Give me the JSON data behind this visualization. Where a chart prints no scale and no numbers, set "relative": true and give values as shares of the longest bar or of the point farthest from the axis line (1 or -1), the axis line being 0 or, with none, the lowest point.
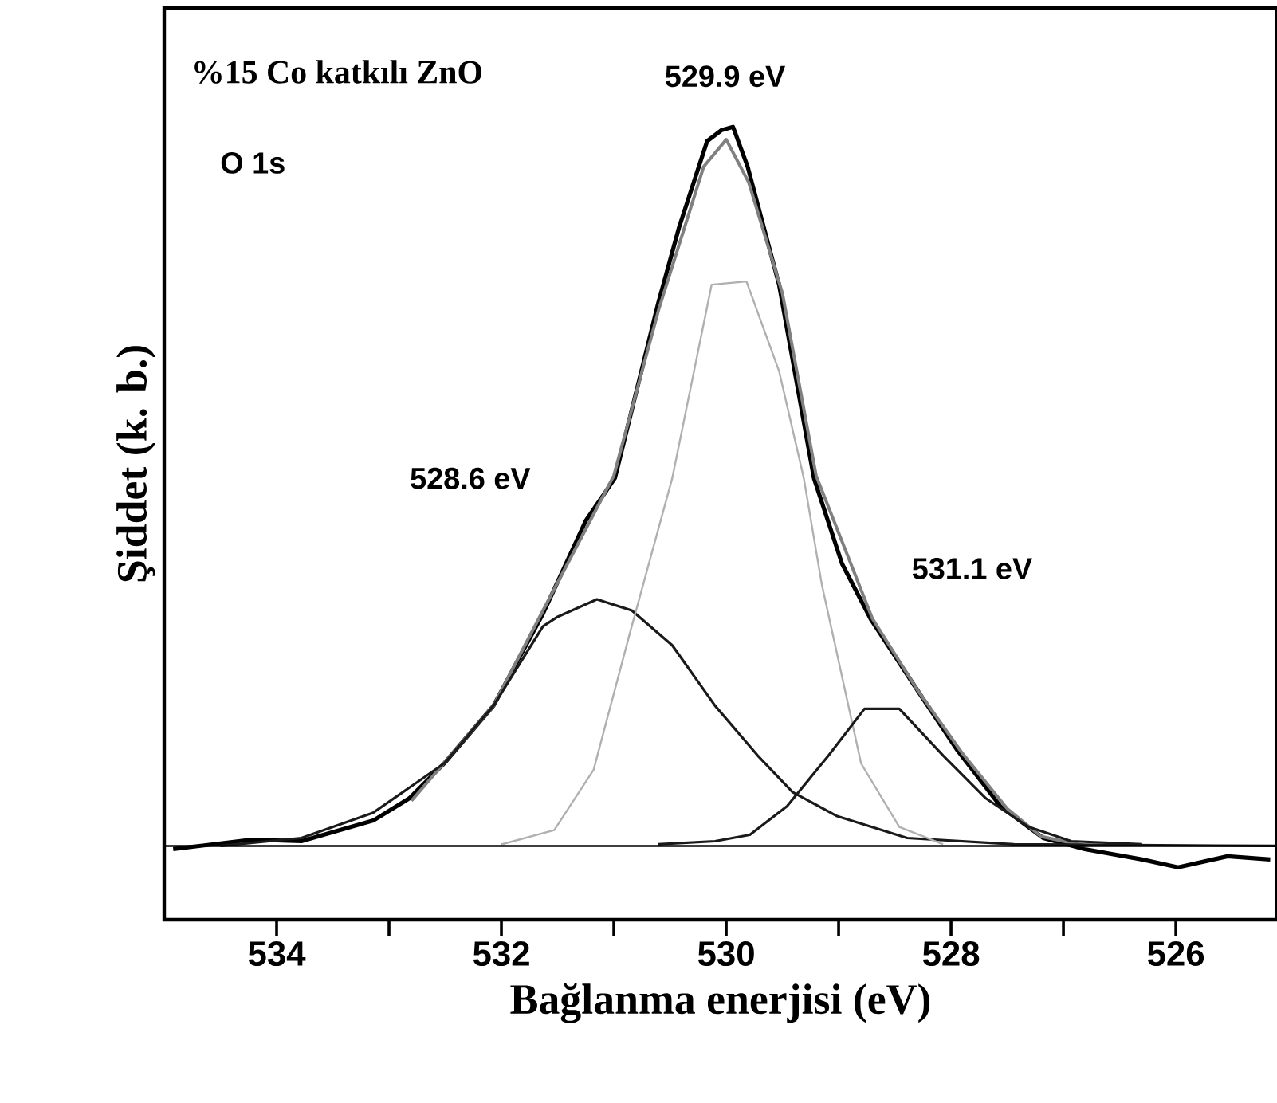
{
  "chart_data": {
    "type": "line",
    "relative": true,
    "xlabel": "Bağlanma enerjisi (eV)",
    "ylabel": "Şiddet (k. b.)",
    "xlim": [
      535,
      525.1
    ],
    "xticks": [
      534,
      {
        "value": 533,
        "label": null
      },
      532,
      {
        "value": 531,
        "label": null
      },
      530,
      {
        "value": 529,
        "label": null
      },
      528,
      {
        "value": 527,
        "label": null
      },
      526
    ],
    "annotations": [
      "%15 Co katkılı ZnO",
      "O 1s",
      "529.9 eV",
      "528.6 eV",
      "531.1 eV"
    ],
    "series": [
      {
        "color": "#000000",
        "x": [
          534.92,
          534.22,
          533.78,
          533.14,
          532.82,
          532.51,
          532.07,
          531.63,
          531.25,
          530.99,
          530.61,
          530.42,
          530.17,
          530.04,
          529.94,
          529.81,
          529.53,
          529.22,
          528.97,
          528.71,
          528.33,
          527.95,
          527.56,
          527.18,
          526.81,
          526.3,
          525.98,
          525.54,
          525.16
        ],
        "values": [
          0.089,
          0.101,
          0.099,
          0.125,
          0.153,
          0.197,
          0.27,
          0.386,
          0.503,
          0.557,
          0.775,
          0.873,
          0.982,
          0.996,
          1.0,
          0.95,
          0.801,
          0.557,
          0.449,
          0.378,
          0.296,
          0.215,
          0.143,
          0.103,
          0.089,
          0.076,
          0.066,
          0.08,
          0.076
        ]
      },
      {
        "color": "#808080",
        "x": [
          532.8,
          532.07,
          531.63,
          531.0,
          530.6,
          530.2,
          530.0,
          529.8,
          529.5,
          529.2,
          528.7,
          528.3,
          527.9,
          527.5,
          527.2,
          526.8
        ],
        "values": [
          0.15,
          0.27,
          0.39,
          0.56,
          0.77,
          0.95,
          0.984,
          0.93,
          0.79,
          0.56,
          0.38,
          0.29,
          0.21,
          0.14,
          0.105,
          0.093
        ]
      },
      {
        "color": "#1a1a1a",
        "x": [
          534.5,
          533.78,
          533.14,
          532.51,
          532.07,
          531.63,
          531.5,
          531.15,
          530.84,
          530.48,
          530.1,
          529.72,
          529.41,
          529.02,
          528.39,
          527.44,
          525.1
        ],
        "values": [
          0.093,
          0.103,
          0.135,
          0.197,
          0.27,
          0.37,
          0.382,
          0.404,
          0.39,
          0.346,
          0.27,
          0.207,
          0.161,
          0.131,
          0.103,
          0.095,
          0.093
        ]
      },
      {
        "color": "#b0b0b0",
        "x": [
          532.0,
          531.53,
          531.18,
          530.86,
          530.48,
          530.13,
          529.82,
          529.53,
          529.31,
          529.15,
          528.8,
          528.46,
          528.07
        ],
        "values": [
          0.095,
          0.113,
          0.189,
          0.36,
          0.557,
          0.801,
          0.805,
          0.692,
          0.557,
          0.423,
          0.197,
          0.117,
          0.095
        ]
      },
      {
        "color": "#1a1a1a",
        "x": [
          530.61,
          530.1,
          529.79,
          529.46,
          529.09,
          528.77,
          528.46,
          528.07,
          527.69,
          527.31,
          526.93,
          526.3
        ],
        "values": [
          0.095,
          0.099,
          0.107,
          0.143,
          0.207,
          0.266,
          0.266,
          0.207,
          0.153,
          0.117,
          0.099,
          0.095
        ]
      },
      {
        "color": "#000000",
        "x": [
          535.0,
          525.1
        ],
        "values": [
          0.093,
          0.093
        ]
      }
    ]
  }
}
